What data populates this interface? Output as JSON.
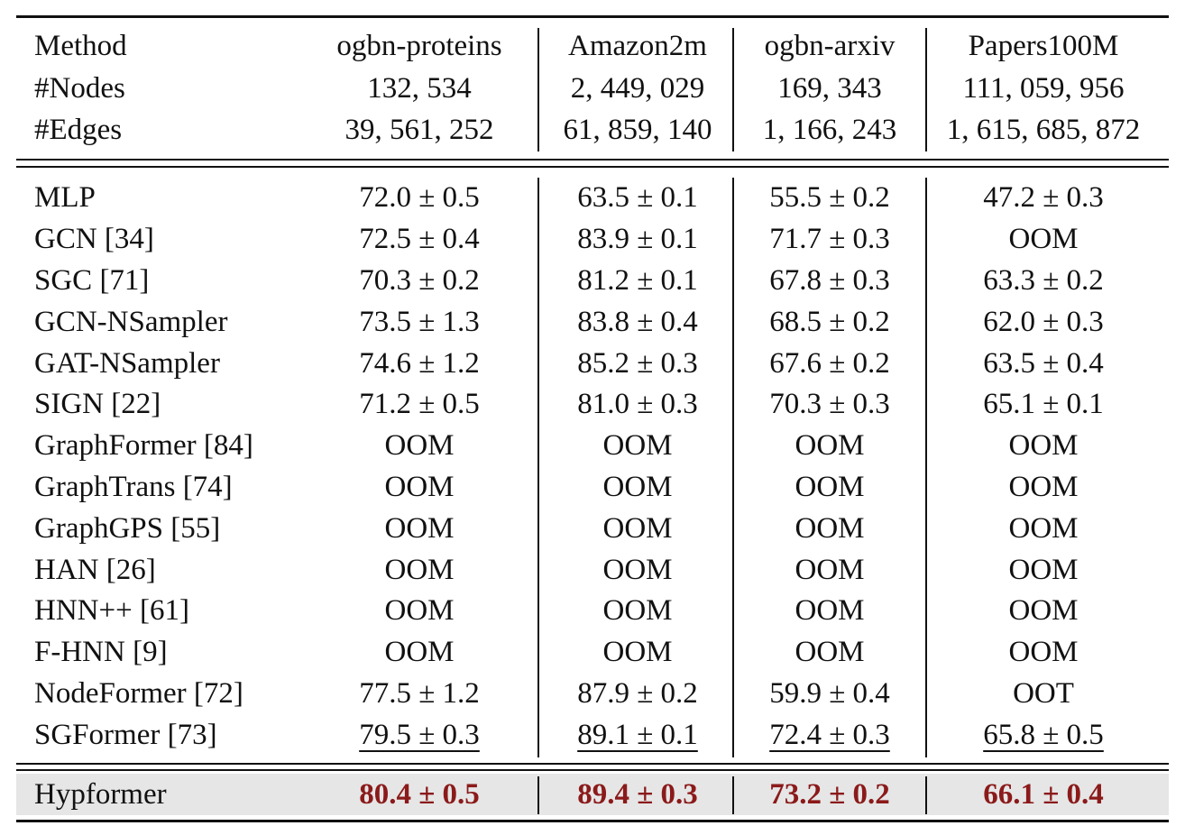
{
  "columns": [
    "Method",
    "ogbn-proteins",
    "Amazon2m",
    "ogbn-arxiv",
    "Papers100M"
  ],
  "stats": [
    {
      "label": "#Nodes",
      "values": [
        "132, 534",
        "2, 449, 029",
        "169, 343",
        "111, 059, 956"
      ]
    },
    {
      "label": "#Edges",
      "values": [
        "39, 561, 252",
        "61, 859, 140",
        "1, 166, 243",
        "1, 615, 685, 872"
      ]
    }
  ],
  "rows": [
    {
      "method": "MLP",
      "values": [
        "72.0 ± 0.5",
        "63.5 ± 0.1",
        "55.5 ± 0.2",
        "47.2 ± 0.3"
      ]
    },
    {
      "method": "GCN [34]",
      "values": [
        "72.5 ± 0.4",
        "83.9 ± 0.1",
        "71.7 ± 0.3",
        "OOM"
      ]
    },
    {
      "method": "SGC [71]",
      "values": [
        "70.3 ± 0.2",
        "81.2 ± 0.1",
        "67.8 ± 0.3",
        "63.3 ± 0.2"
      ]
    },
    {
      "method": "GCN-NSampler",
      "values": [
        "73.5 ± 1.3",
        "83.8 ± 0.4",
        "68.5 ± 0.2",
        "62.0 ± 0.3"
      ]
    },
    {
      "method": "GAT-NSampler",
      "values": [
        "74.6 ± 1.2",
        "85.2 ± 0.3",
        "67.6 ± 0.2",
        "63.5 ± 0.4"
      ]
    },
    {
      "method": "SIGN [22]",
      "values": [
        "71.2 ± 0.5",
        "81.0 ± 0.3",
        "70.3 ± 0.3",
        "65.1 ± 0.1"
      ]
    },
    {
      "method": "GraphFormer [84]",
      "values": [
        "OOM",
        "OOM",
        "OOM",
        "OOM"
      ]
    },
    {
      "method": "GraphTrans [74]",
      "values": [
        "OOM",
        "OOM",
        "OOM",
        "OOM"
      ]
    },
    {
      "method": "GraphGPS [55]",
      "values": [
        "OOM",
        "OOM",
        "OOM",
        "OOM"
      ]
    },
    {
      "method": "HAN [26]",
      "values": [
        "OOM",
        "OOM",
        "OOM",
        "OOM"
      ]
    },
    {
      "method": "HNN++ [61]",
      "values": [
        "OOM",
        "OOM",
        "OOM",
        "OOM"
      ]
    },
    {
      "method": "F-HNN [9]",
      "values": [
        "OOM",
        "OOM",
        "OOM",
        "OOM"
      ]
    },
    {
      "method": "NodeFormer [72]",
      "values": [
        "77.5 ± 1.2",
        "87.9 ± 0.2",
        "59.9 ± 0.4",
        "OOT"
      ]
    },
    {
      "method": "SGFormer [73]",
      "values": [
        "79.5 ± 0.3",
        "89.1 ± 0.1",
        "72.4 ± 0.3",
        "65.8 ± 0.5"
      ],
      "underline": true
    }
  ],
  "highlight_row": {
    "method": "Hypformer",
    "values": [
      "80.4 ± 0.5",
      "89.4 ± 0.3",
      "73.2 ± 0.2",
      "66.1 ± 0.4"
    ]
  },
  "colors": {
    "best": "#8b1a1a",
    "highlight_bg": "#e6e6e6"
  }
}
